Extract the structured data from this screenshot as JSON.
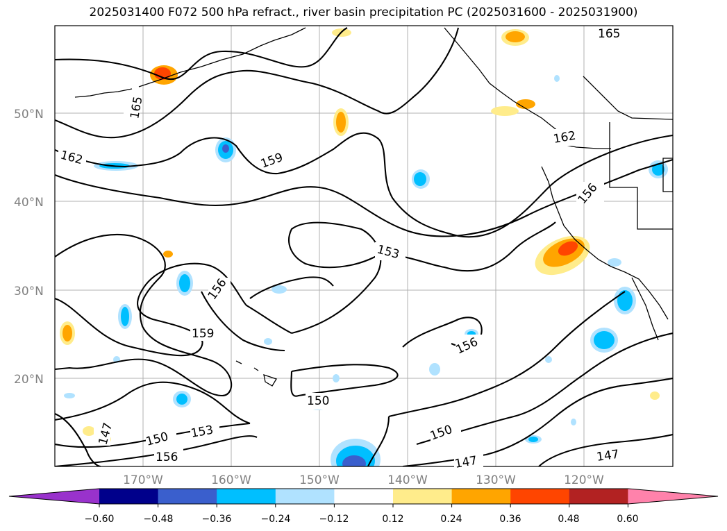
{
  "title": "2025031400 F072 500 hPa refract., river basin precipitation PC (2025031600 - 2025031900)",
  "lon_labels": [
    "170°W",
    "160°W",
    "150°W",
    "140°W",
    "130°W",
    "120°W"
  ],
  "lat_labels": [
    "50°N",
    "40°N",
    "30°N",
    "20°N"
  ],
  "contour_labels": [
    "165",
    "165",
    "162",
    "162",
    "159",
    "159",
    "156",
    "156",
    "156",
    "156",
    "153",
    "153",
    "150",
    "150",
    "150",
    "147",
    "147",
    "147"
  ],
  "colorbar": {
    "ticks": [
      "−0.60",
      "−0.48",
      "−0.36",
      "−0.24",
      "−0.12",
      "0.12",
      "0.24",
      "0.36",
      "0.48",
      "0.60"
    ],
    "colors": [
      "#9932cc",
      "#00008b",
      "#3a5fcd",
      "#00bfff",
      "#b0e2ff",
      "#ffffff",
      "#ffec8b",
      "#ffa500",
      "#ff4500",
      "#b22222",
      "#ff82ab"
    ]
  }
}
